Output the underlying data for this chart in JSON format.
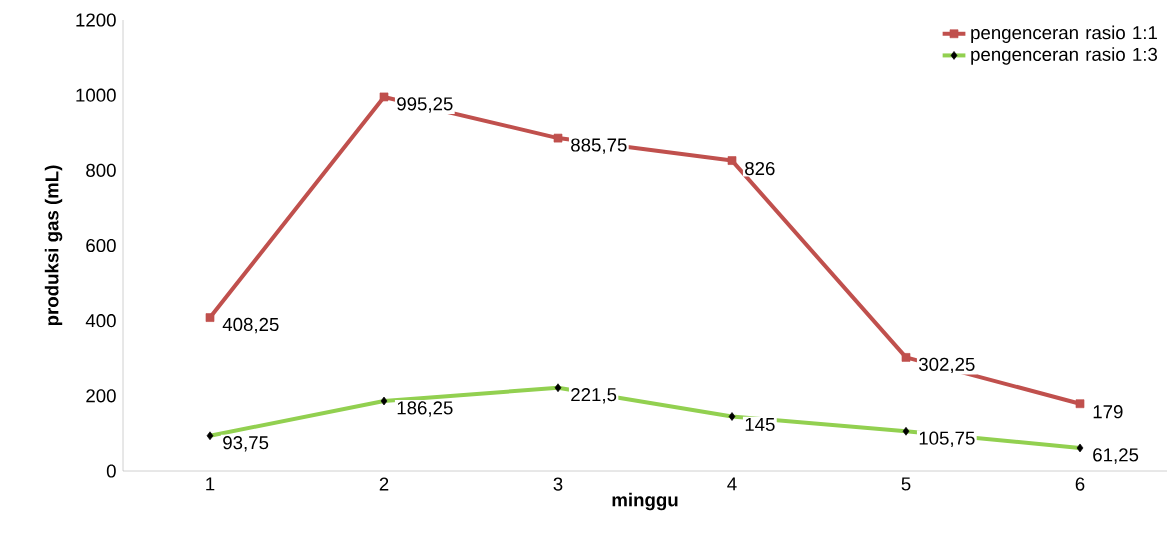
{
  "chart_data": {
    "type": "line",
    "xlabel": "minggu",
    "ylabel": "produksi gas (mL)",
    "categories": [
      "1",
      "2",
      "3",
      "4",
      "5",
      "6"
    ],
    "ylim": [
      0,
      1200
    ],
    "yticks": [
      0,
      200,
      400,
      600,
      800,
      1000,
      1200
    ],
    "legend": "top right",
    "grid": false,
    "line_style": "solid",
    "series": [
      {
        "name": "pengenceran  rasio 1:1",
        "color": "#c0504d",
        "marker": "square",
        "values": [
          408.25,
          995.25,
          885.75,
          826,
          302.25,
          179
        ],
        "value_labels": [
          "408,25",
          "995,25",
          "885,75",
          "826",
          "302,25",
          "179"
        ]
      },
      {
        "name": "pengenceran  rasio 1:3",
        "color": "#92d050",
        "marker": "diamond",
        "values": [
          93.75,
          186.25,
          221.5,
          145,
          105.75,
          61.25
        ],
        "value_labels": [
          "93,75",
          "186,25",
          "221,5",
          "145",
          "105,75",
          "61,25"
        ]
      }
    ]
  }
}
